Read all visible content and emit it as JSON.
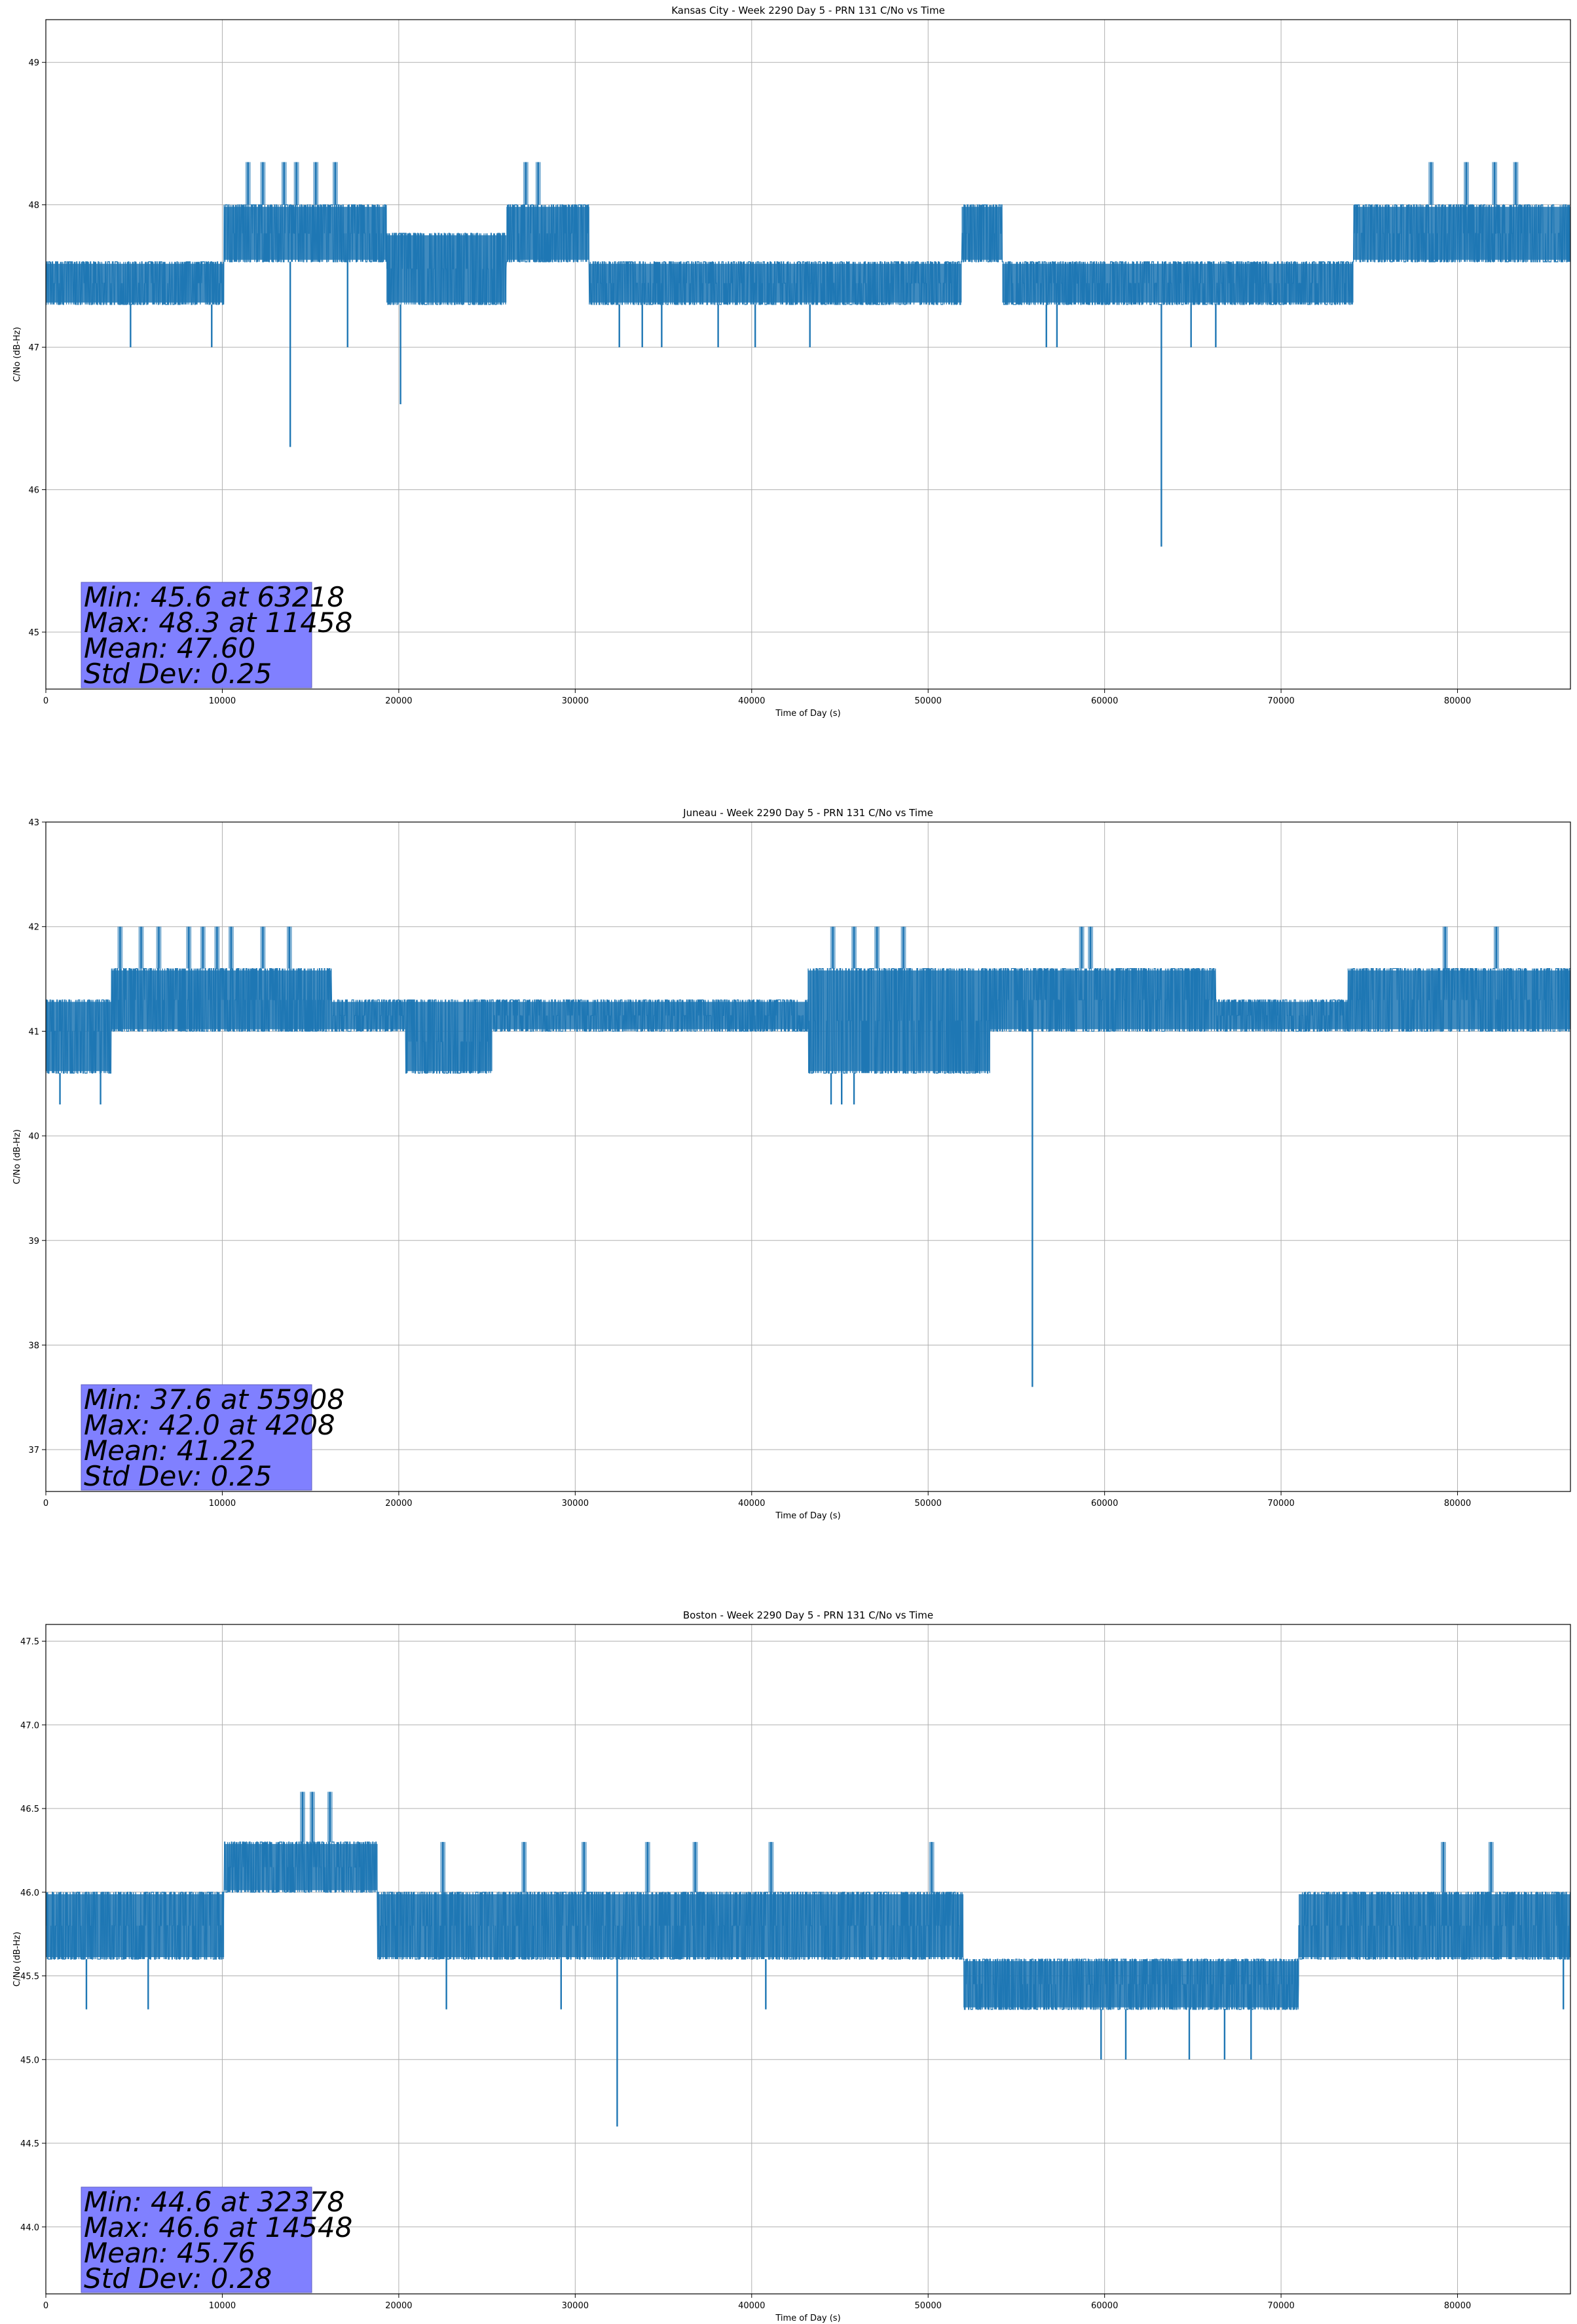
{
  "chart_data": [
    {
      "type": "line",
      "title": "Kansas City - Week 2290 Day 5 - PRN 131 C/No vs Time",
      "xlabel": "Time of Day (s)",
      "ylabel": "C/No (dB-Hz)",
      "xlim": [
        0,
        86400
      ],
      "ylim": [
        44.6,
        49.3
      ],
      "xticks": [
        0,
        10000,
        20000,
        30000,
        40000,
        50000,
        60000,
        70000,
        80000
      ],
      "yticks": [
        45,
        46,
        47,
        48,
        49
      ],
      "ytick_decimals": 0,
      "grid": true,
      "line_color": "#1f77b4",
      "stats_box_color": "#8080ff",
      "stats": [
        "Min: 45.6 at 63218",
        "Max: 48.3 at 11458",
        "Mean: 47.60",
        "Std Dev: 0.25"
      ],
      "series": [
        {
          "segments": [
            {
              "x": [
                0,
                10100
              ],
              "low": 47.3,
              "high": 47.6,
              "mid": 47.45
            },
            {
              "x": [
                10100,
                19300
              ],
              "low": 47.6,
              "high": 48.0,
              "mid": 47.8
            },
            {
              "x": [
                19300,
                26100
              ],
              "low": 47.3,
              "high": 47.8,
              "mid": 47.55
            },
            {
              "x": [
                26100,
                30800
              ],
              "low": 47.6,
              "high": 48.0,
              "mid": 47.8
            },
            {
              "x": [
                30800,
                51900
              ],
              "low": 47.3,
              "high": 47.6,
              "mid": 47.45
            },
            {
              "x": [
                51900,
                54200
              ],
              "low": 47.6,
              "high": 48.0,
              "mid": 47.8
            },
            {
              "x": [
                54200,
                74100
              ],
              "low": 47.3,
              "high": 47.6,
              "mid": 47.45
            },
            {
              "x": [
                74100,
                86400
              ],
              "low": 47.6,
              "high": 48.0,
              "mid": 47.8
            }
          ],
          "extremes": [
            [
              11458,
              48.3
            ],
            [
              12300,
              48.3
            ],
            [
              13500,
              48.3
            ],
            [
              14200,
              48.3
            ],
            [
              15300,
              48.3
            ],
            [
              16400,
              48.3
            ],
            [
              27200,
              48.3
            ],
            [
              27900,
              48.3
            ],
            [
              78500,
              48.3
            ],
            [
              80500,
              48.3
            ],
            [
              82100,
              48.3
            ],
            [
              83300,
              48.3
            ],
            [
              4800,
              47.0
            ],
            [
              9400,
              47.0
            ],
            [
              13850,
              46.3
            ],
            [
              17100,
              47.0
            ],
            [
              20100,
              46.6
            ],
            [
              32500,
              47.0
            ],
            [
              33800,
              47.0
            ],
            [
              34900,
              47.0
            ],
            [
              38100,
              47.0
            ],
            [
              40200,
              47.0
            ],
            [
              43300,
              47.0
            ],
            [
              56700,
              47.0
            ],
            [
              57300,
              47.0
            ],
            [
              63218,
              45.6
            ],
            [
              64900,
              47.0
            ],
            [
              66300,
              47.0
            ]
          ]
        }
      ]
    },
    {
      "type": "line",
      "title": "Juneau - Week 2290 Day 5 - PRN 131 C/No vs Time",
      "xlabel": "Time of Day (s)",
      "ylabel": "C/No (dB-Hz)",
      "xlim": [
        0,
        86400
      ],
      "ylim": [
        36.6,
        43.0
      ],
      "xticks": [
        0,
        10000,
        20000,
        30000,
        40000,
        50000,
        60000,
        70000,
        80000
      ],
      "yticks": [
        37,
        38,
        39,
        40,
        41,
        42,
        43
      ],
      "ytick_decimals": 0,
      "grid": true,
      "line_color": "#1f77b4",
      "stats_box_color": "#8080ff",
      "stats": [
        "Min: 37.6 at 55908",
        "Max: 42.0 at 4208",
        "Mean: 41.22",
        "Std Dev: 0.25"
      ],
      "series": [
        {
          "segments": [
            {
              "x": [
                0,
                3700
              ],
              "low": 40.6,
              "high": 41.3,
              "mid": 41.0
            },
            {
              "x": [
                3700,
                16200
              ],
              "low": 41.0,
              "high": 41.6,
              "mid": 41.3
            },
            {
              "x": [
                16200,
                20400
              ],
              "low": 41.0,
              "high": 41.3,
              "mid": 41.15
            },
            {
              "x": [
                20400,
                25300
              ],
              "low": 40.6,
              "high": 41.3,
              "mid": 40.9
            },
            {
              "x": [
                25300,
                43200
              ],
              "low": 41.0,
              "high": 41.3,
              "mid": 41.15
            },
            {
              "x": [
                43200,
                53500
              ],
              "low": 40.6,
              "high": 41.6,
              "mid": 41.1
            },
            {
              "x": [
                53500,
                66300
              ],
              "low": 41.0,
              "high": 41.6,
              "mid": 41.3
            },
            {
              "x": [
                66300,
                73800
              ],
              "low": 41.0,
              "high": 41.3,
              "mid": 41.15
            },
            {
              "x": [
                73800,
                86400
              ],
              "low": 41.0,
              "high": 41.6,
              "mid": 41.3
            }
          ],
          "extremes": [
            [
              4208,
              42.0
            ],
            [
              5400,
              42.0
            ],
            [
              6400,
              42.0
            ],
            [
              8100,
              42.0
            ],
            [
              8900,
              42.0
            ],
            [
              9700,
              42.0
            ],
            [
              10500,
              42.0
            ],
            [
              12300,
              42.0
            ],
            [
              13800,
              42.0
            ],
            [
              44600,
              42.0
            ],
            [
              45800,
              42.0
            ],
            [
              47100,
              42.0
            ],
            [
              48600,
              42.0
            ],
            [
              58700,
              42.0
            ],
            [
              59200,
              42.0
            ],
            [
              79300,
              42.0
            ],
            [
              82200,
              42.0
            ],
            [
              800,
              40.3
            ],
            [
              3100,
              40.3
            ],
            [
              44500,
              40.3
            ],
            [
              45100,
              40.3
            ],
            [
              45800,
              40.3
            ],
            [
              55908,
              37.6
            ]
          ]
        }
      ]
    },
    {
      "type": "line",
      "title": "Boston - Week 2290 Day 5 - PRN 131 C/No vs Time",
      "xlabel": "Time of Day (s)",
      "ylabel": "C/No (dB-Hz)",
      "xlim": [
        0,
        86400
      ],
      "ylim": [
        43.6,
        47.6
      ],
      "xticks": [
        0,
        10000,
        20000,
        30000,
        40000,
        50000,
        60000,
        70000,
        80000
      ],
      "yticks": [
        44.0,
        44.5,
        45.0,
        45.5,
        46.0,
        46.5,
        47.0,
        47.5
      ],
      "ytick_decimals": 1,
      "grid": true,
      "line_color": "#1f77b4",
      "stats_box_color": "#8080ff",
      "stats": [
        "Min: 44.6 at 32378",
        "Max: 46.6 at 14548",
        "Mean: 45.76",
        "Std Dev: 0.28"
      ],
      "series": [
        {
          "segments": [
            {
              "x": [
                0,
                10100
              ],
              "low": 45.6,
              "high": 46.0,
              "mid": 45.8
            },
            {
              "x": [
                10100,
                18800
              ],
              "low": 46.0,
              "high": 46.3,
              "mid": 46.15
            },
            {
              "x": [
                18800,
                52000
              ],
              "low": 45.6,
              "high": 46.0,
              "mid": 45.8
            },
            {
              "x": [
                52000,
                71000
              ],
              "low": 45.3,
              "high": 45.6,
              "mid": 45.45
            },
            {
              "x": [
                71000,
                86400
              ],
              "low": 45.6,
              "high": 46.0,
              "mid": 45.8
            }
          ],
          "extremes": [
            [
              14548,
              46.6
            ],
            [
              15100,
              46.6
            ],
            [
              16100,
              46.6
            ],
            [
              22500,
              46.3
            ],
            [
              27100,
              46.3
            ],
            [
              30500,
              46.3
            ],
            [
              34100,
              46.3
            ],
            [
              36800,
              46.3
            ],
            [
              41100,
              46.3
            ],
            [
              50200,
              46.3
            ],
            [
              79200,
              46.3
            ],
            [
              81900,
              46.3
            ],
            [
              32378,
              44.6
            ],
            [
              2300,
              45.3
            ],
            [
              5800,
              45.3
            ],
            [
              22700,
              45.3
            ],
            [
              29200,
              45.3
            ],
            [
              40800,
              45.3
            ],
            [
              57100,
              45.3
            ],
            [
              59800,
              45.0
            ],
            [
              61200,
              45.0
            ],
            [
              64800,
              45.0
            ],
            [
              66800,
              45.0
            ],
            [
              68300,
              45.0
            ],
            [
              86000,
              45.3
            ]
          ]
        }
      ]
    }
  ]
}
